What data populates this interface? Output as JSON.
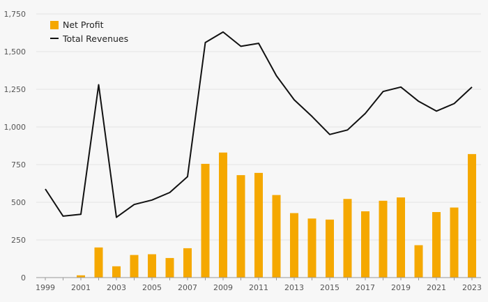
{
  "chart_data": {
    "type": "bar",
    "x": [
      1999,
      2000,
      2001,
      2002,
      2003,
      2004,
      2005,
      2006,
      2007,
      2008,
      2009,
      2010,
      2011,
      2012,
      2013,
      2014,
      2015,
      2016,
      2017,
      2018,
      2019,
      2020,
      2021,
      2022,
      2023
    ],
    "x_tick_labels": [
      "1999",
      "2001",
      "2003",
      "2005",
      "2007",
      "2009",
      "2011",
      "2013",
      "2015",
      "2017",
      "2019",
      "2021",
      "2023"
    ],
    "series": [
      {
        "name": "Net Profit",
        "type": "bar",
        "color": "#f5a800",
        "values": [
          0,
          0,
          15,
          200,
          75,
          150,
          155,
          130,
          195,
          755,
          830,
          680,
          695,
          548,
          428,
          392,
          385,
          522,
          440,
          510,
          532,
          215,
          435,
          465,
          820
        ]
      },
      {
        "name": "Total Revenues",
        "type": "line",
        "color": "#111111",
        "values": [
          588,
          408,
          420,
          1280,
          400,
          485,
          515,
          565,
          670,
          1560,
          1630,
          1535,
          1555,
          1340,
          1180,
          1070,
          950,
          980,
          1090,
          1235,
          1265,
          1170,
          1105,
          1155,
          1265
        ]
      }
    ],
    "ylim": [
      0,
      1750
    ],
    "y_ticks": [
      0,
      250,
      500,
      750,
      1000,
      1250,
      1500,
      1750
    ],
    "y_tick_labels": [
      "0",
      "250",
      "500",
      "750",
      "1,000",
      "1,250",
      "1,500",
      "1,750"
    ],
    "legend_position": "top-left",
    "grid": "horizontal",
    "title": "",
    "xlabel": "",
    "ylabel": ""
  }
}
